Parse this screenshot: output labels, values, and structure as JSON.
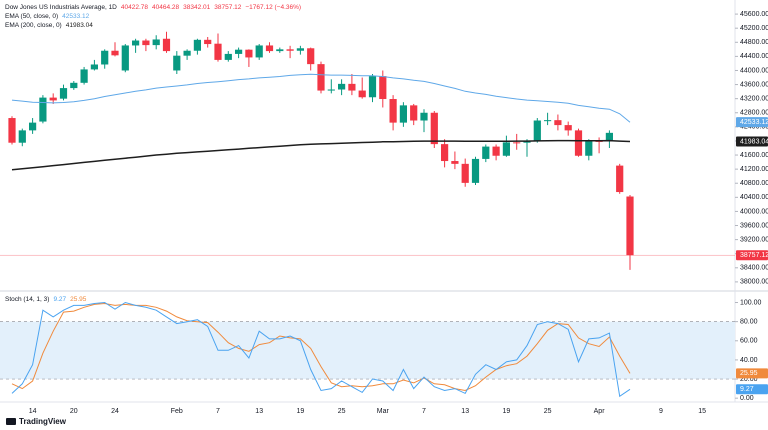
{
  "chart_data": [
    {
      "type": "candlestick",
      "title": "Dow Jones US Industrials Average, 1D",
      "change_text": "−1767.12 (−4.36%)",
      "categories": [
        null,
        null,
        "14",
        null,
        null,
        null,
        "20",
        null,
        null,
        null,
        "24",
        null,
        null,
        null,
        null,
        null,
        "Feb",
        null,
        null,
        null,
        "7",
        null,
        null,
        null,
        "13",
        null,
        null,
        null,
        "19",
        null,
        null,
        null,
        "25",
        null,
        null,
        null,
        "Mar",
        null,
        null,
        null,
        "7",
        null,
        null,
        null,
        "13",
        null,
        null,
        null,
        "19",
        null,
        null,
        null,
        "25",
        null,
        null,
        null,
        null,
        "Apr",
        null,
        null,
        null,
        null,
        null,
        "9",
        null,
        null,
        null,
        "15"
      ],
      "open": [
        42650,
        41950,
        42300,
        42550,
        43230,
        43200,
        43500,
        43650,
        44030,
        44170,
        44560,
        44000,
        44710,
        44850,
        44720,
        44900,
        44000,
        44420,
        44560,
        44870,
        44760,
        44300,
        44470,
        44590,
        44370,
        44710,
        44550,
        44600,
        44560,
        44630,
        44180,
        43430,
        43460,
        43620,
        43430,
        43240,
        43840,
        43190,
        42520,
        43010,
        42580,
        42800,
        41910,
        41430,
        41350,
        40810,
        41490,
        41840,
        41580,
        41960,
        41950,
        41990,
        42580,
        42590,
        42450,
        42300,
        41580,
        42000,
        41990,
        41300,
        40422.78,
        null,
        null,
        null,
        null,
        null,
        null,
        null
      ],
      "high": [
        42700,
        42350,
        42650,
        43300,
        43350,
        43600,
        43700,
        44100,
        44300,
        44600,
        44800,
        44750,
        44900,
        44900,
        45000,
        45100,
        44550,
        44600,
        44900,
        44950,
        45050,
        44550,
        44650,
        44600,
        44750,
        44800,
        44650,
        44700,
        44700,
        44650,
        44250,
        43750,
        43750,
        43900,
        43800,
        43900,
        44000,
        43300,
        43100,
        43050,
        42900,
        42850,
        42050,
        41700,
        41500,
        41550,
        41900,
        41900,
        42150,
        42200,
        42050,
        42650,
        42800,
        42750,
        42550,
        42350,
        42050,
        42100,
        42300,
        41350,
        40464.28,
        null,
        null,
        null,
        null,
        null,
        null,
        null
      ],
      "low": [
        41900,
        41850,
        42200,
        42500,
        43050,
        43150,
        43450,
        43600,
        44000,
        44050,
        44400,
        43950,
        44500,
        44550,
        44600,
        44500,
        43900,
        44300,
        44450,
        44650,
        44250,
        44250,
        44350,
        44100,
        44300,
        44500,
        44500,
        44350,
        44450,
        44000,
        43350,
        43350,
        43300,
        43300,
        43200,
        43100,
        42950,
        42300,
        42400,
        42450,
        42250,
        41800,
        41250,
        41200,
        40700,
        40750,
        41400,
        41450,
        41550,
        41750,
        41550,
        41950,
        42450,
        42300,
        42150,
        41550,
        41450,
        41650,
        41800,
        40500,
        38342.01,
        null,
        null,
        null,
        null,
        null,
        null,
        null
      ],
      "close": [
        41950,
        42300,
        42520,
        43230,
        43150,
        43500,
        43650,
        44030,
        44170,
        44560,
        44430,
        44710,
        44850,
        44720,
        44880,
        44550,
        44420,
        44560,
        44870,
        44750,
        44300,
        44470,
        44590,
        44370,
        44710,
        44550,
        44600,
        44560,
        44630,
        44180,
        43430,
        43460,
        43620,
        43430,
        43240,
        43840,
        43190,
        42520,
        43010,
        42580,
        42800,
        41910,
        41430,
        41350,
        40810,
        41490,
        41840,
        41580,
        41960,
        41950,
        41990,
        42580,
        42590,
        42450,
        42300,
        41580,
        42000,
        41990,
        42230,
        40550,
        38757.12,
        null,
        null,
        null,
        null,
        null,
        null,
        null
      ],
      "up_color": "#089981",
      "down_color": "#f23645",
      "series": [
        {
          "name": "EMA (50, close, 0)",
          "color": "#5fa8e8",
          "values": [
            43160,
            43130,
            43100,
            43090,
            43080,
            43090,
            43110,
            43150,
            43200,
            43260,
            43310,
            43360,
            43410,
            43450,
            43500,
            43530,
            43560,
            43590,
            43630,
            43660,
            43680,
            43710,
            43740,
            43760,
            43790,
            43810,
            43830,
            43860,
            43880,
            43890,
            43880,
            43870,
            43870,
            43860,
            43850,
            43850,
            43830,
            43790,
            43760,
            43720,
            43690,
            43630,
            43560,
            43490,
            43410,
            43360,
            43320,
            43270,
            43230,
            43190,
            43160,
            43140,
            43120,
            43100,
            43070,
            43010,
            42970,
            42930,
            42900,
            42770,
            42533.12,
            null,
            null,
            null,
            null,
            null,
            null,
            null
          ]
        },
        {
          "name": "EMA (200, close, 0)",
          "color": "#1e1e1e",
          "values": [
            41180,
            41210,
            41240,
            41270,
            41300,
            41330,
            41360,
            41390,
            41420,
            41450,
            41480,
            41510,
            41540,
            41570,
            41600,
            41625,
            41650,
            41670,
            41690,
            41710,
            41730,
            41750,
            41770,
            41790,
            41810,
            41830,
            41850,
            41870,
            41890,
            41905,
            41915,
            41925,
            41935,
            41945,
            41955,
            41965,
            41975,
            41980,
            41985,
            41990,
            41995,
            41995,
            41995,
            41995,
            41990,
            41990,
            41990,
            41990,
            41990,
            41995,
            41995,
            42000,
            42005,
            42010,
            42010,
            42005,
            42005,
            42005,
            42010,
            41995,
            41983.04,
            null,
            null,
            null,
            null,
            null,
            null,
            null
          ]
        }
      ],
      "ylim": [
        37770,
        46000
      ],
      "yticks": [
        {
          "value": 38000,
          "label": "38000.00"
        },
        {
          "value": 38400,
          "label": "38400.00"
        },
        {
          "value": 38800,
          "label": "38800.00"
        },
        {
          "value": 39200,
          "label": "39200.00"
        },
        {
          "value": 39600,
          "label": "39600.00"
        },
        {
          "value": 40000,
          "label": "40000.00"
        },
        {
          "value": 40400,
          "label": "40400.00"
        },
        {
          "value": 40800,
          "label": "40800.00"
        },
        {
          "value": 41200,
          "label": "41200.00"
        },
        {
          "value": 41600,
          "label": "41600.00"
        },
        {
          "value": 42000,
          "label": "42000.00"
        },
        {
          "value": 42400,
          "label": "42400.00"
        },
        {
          "value": 42800,
          "label": "42800.00"
        },
        {
          "value": 43200,
          "label": "43200.00"
        },
        {
          "value": 43600,
          "label": "43600.00"
        },
        {
          "value": 44000,
          "label": "44000.00"
        },
        {
          "value": 44400,
          "label": "44400.00"
        },
        {
          "value": 44800,
          "label": "44800.00"
        },
        {
          "value": 45200,
          "label": "45200.00"
        },
        {
          "value": 45600,
          "label": "45600.00"
        }
      ]
    },
    {
      "type": "line",
      "title": "Stoch (14, 1, 3)",
      "series": [
        {
          "color": "#4aa3f0",
          "values": [
            5,
            15,
            35,
            92,
            85,
            92,
            97,
            97,
            99,
            100,
            93,
            100,
            97,
            95,
            92,
            85,
            78,
            80,
            82,
            75,
            50,
            50,
            55,
            42,
            70,
            62,
            62,
            65,
            60,
            30,
            8,
            10,
            18,
            12,
            6,
            20,
            18,
            8,
            30,
            10,
            22,
            12,
            8,
            10,
            5,
            25,
            35,
            30,
            38,
            40,
            55,
            77,
            80,
            78,
            72,
            38,
            62,
            63,
            68,
            2,
            9.27,
            null,
            null,
            null,
            null,
            null,
            null,
            null
          ]
        },
        {
          "color": "#f08a3c",
          "values": [
            15,
            10,
            18,
            47,
            70,
            90,
            91,
            95,
            98,
            99,
            97,
            98,
            97,
            97,
            95,
            91,
            85,
            81,
            80,
            79,
            69,
            58,
            52,
            49,
            56,
            58,
            65,
            63,
            62,
            52,
            33,
            16,
            12,
            13,
            12,
            13,
            15,
            15,
            19,
            16,
            21,
            15,
            14,
            10,
            8,
            13,
            22,
            30,
            34,
            36,
            44,
            57,
            71,
            78,
            77,
            63,
            57,
            54,
            64,
            44,
            25.95,
            null,
            null,
            null,
            null,
            null,
            null,
            null
          ]
        }
      ],
      "band": [
        20,
        80
      ],
      "band_color": "#e3f0fb",
      "ylim": [
        -4,
        111
      ],
      "yticks": [
        {
          "value": 0,
          "label": "0.00"
        },
        {
          "value": 20,
          "label": "20.00"
        },
        {
          "value": 40,
          "label": "40.00"
        },
        {
          "value": 60,
          "label": "60.00"
        },
        {
          "value": 80,
          "label": "80.00"
        },
        {
          "value": 100,
          "label": "100.00"
        }
      ]
    }
  ],
  "branding": "TradingView"
}
